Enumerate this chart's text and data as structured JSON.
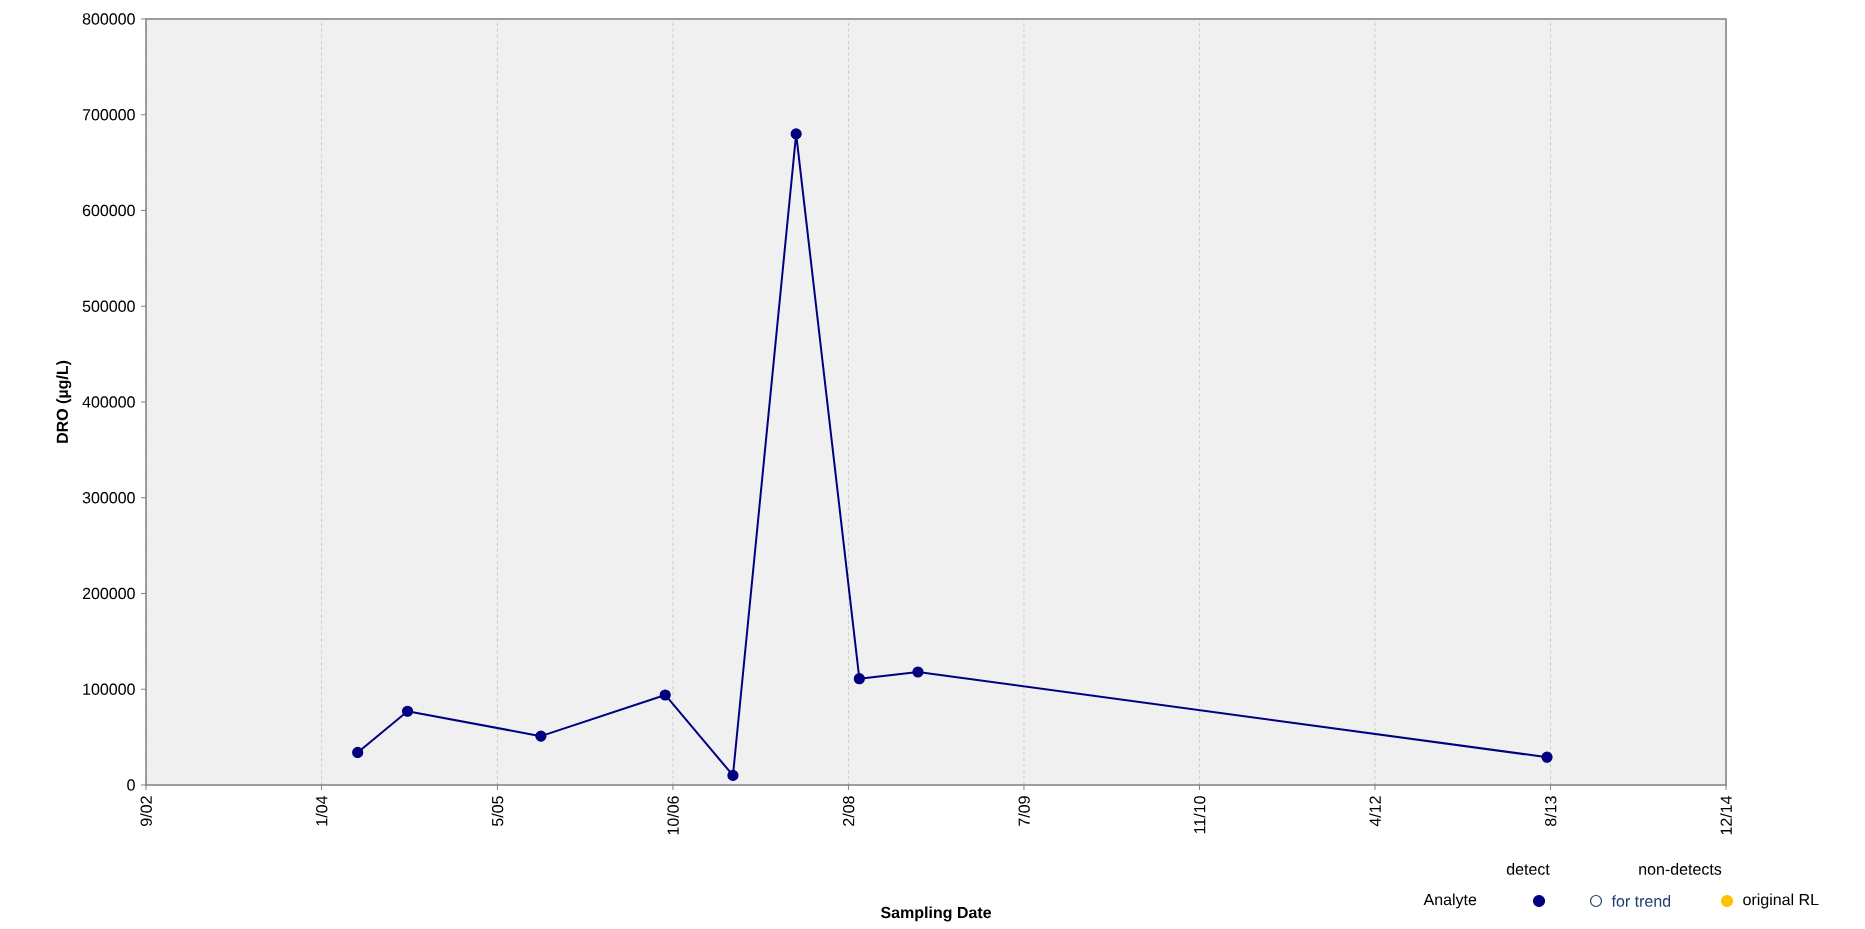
{
  "chart_data": {
    "type": "line",
    "xlabel": "Sampling Date",
    "ylabel": "DRO (µg/L)",
    "legend_title": "Analyte",
    "annotations": [
      "non-detects"
    ],
    "xlim": [
      "2002-09-01",
      "2014-12-28"
    ],
    "xticks": [
      {
        "value": "2002-09-01",
        "label": "9/02"
      },
      {
        "value": "2004-01-14",
        "label": "1/04"
      },
      {
        "value": "2005-05-29",
        "label": "5/05"
      },
      {
        "value": "2006-10-11",
        "label": "10/06"
      },
      {
        "value": "2008-02-23",
        "label": "2/08"
      },
      {
        "value": "2009-07-07",
        "label": "7/09"
      },
      {
        "value": "2010-11-19",
        "label": "11/10"
      },
      {
        "value": "2012-04-02",
        "label": "4/12"
      },
      {
        "value": "2013-08-15",
        "label": "8/13"
      },
      {
        "value": "2014-12-28",
        "label": "12/14"
      }
    ],
    "ylim": [
      0,
      800000
    ],
    "yticks": [
      0,
      100000,
      200000,
      300000,
      400000,
      500000,
      600000,
      700000,
      800000
    ],
    "grid": "x",
    "legend": "bottom right",
    "marker": "circle",
    "line_style": "solid",
    "x": [
      "2004-04-26",
      "2004-09-15",
      "2005-09-30",
      "2006-09-19",
      "2007-03-31",
      "2007-09-27",
      "2008-03-25",
      "2008-09-08",
      "2013-08-05"
    ],
    "series": [
      {
        "name": "detect",
        "color": "#000080",
        "marker": "circle",
        "values": [
          34000,
          77000,
          51000,
          94000,
          10000,
          680000,
          111000,
          118000,
          29000
        ]
      },
      {
        "name": "for trend",
        "color": "#1f3d6b",
        "marker": "open",
        "values": [
          null,
          null,
          null,
          null,
          null,
          null,
          null,
          null,
          null
        ]
      },
      {
        "name": "original RL",
        "color": "#ffc000",
        "marker": "circle",
        "values": [
          null,
          null,
          null,
          null,
          null,
          null,
          null,
          null,
          null
        ]
      }
    ]
  }
}
